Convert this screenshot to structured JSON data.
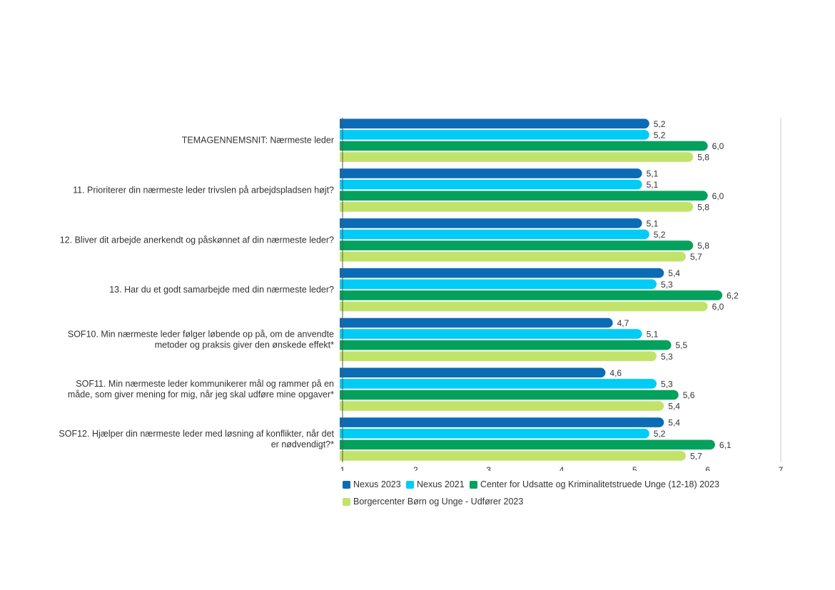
{
  "chart_data": {
    "type": "bar",
    "orientation": "horizontal",
    "title": "",
    "xlabel": "",
    "ylabel": "",
    "xlim": [
      1,
      7
    ],
    "x_ticks": [
      "1",
      "2",
      "3",
      "4",
      "5",
      "6",
      "7"
    ],
    "grid": false,
    "legend_position": "bottom",
    "categories": [
      [
        "TEMAGENNEMSNIT: Nærmeste leder"
      ],
      [
        "11. Prioriterer din nærmeste leder trivslen på arbejdspladsen højt?"
      ],
      [
        "12. Bliver dit arbejde anerkendt og påskønnet af din nærmeste leder?"
      ],
      [
        "13. Har du et godt samarbejde med din nærmeste leder?"
      ],
      [
        "SOF10. Min nærmeste leder følger løbende op på, om de anvendte",
        "metoder og praksis giver den ønskede effekt*"
      ],
      [
        "SOF11. Min nærmeste leder kommunikerer mål og rammer på en",
        "måde, som giver mening for mig, når jeg skal udføre mine opgaver*"
      ],
      [
        "SOF12. Hjælper din nærmeste leder med løsning af konflikter, når det",
        "er nødvendigt?*"
      ]
    ],
    "series": [
      {
        "name": "Nexus 2023",
        "color": "#0B6CB5",
        "values": [
          5.2,
          5.1,
          5.1,
          5.4,
          4.7,
          4.6,
          5.4
        ],
        "labels": [
          "5,2",
          "5,1",
          "5,1",
          "5,4",
          "4,7",
          "4,6",
          "5,4"
        ]
      },
      {
        "name": "Nexus 2021",
        "color": "#00CCF5",
        "values": [
          5.2,
          5.1,
          5.2,
          5.3,
          5.1,
          5.3,
          5.2
        ],
        "labels": [
          "5,2",
          "5,1",
          "5,2",
          "5,3",
          "5,1",
          "5,3",
          "5,2"
        ]
      },
      {
        "name": "Center for Udsatte og Kriminalitetstruede Unge (12-18) 2023",
        "color": "#04A15C",
        "values": [
          6.0,
          6.0,
          5.8,
          6.2,
          5.5,
          5.6,
          6.1
        ],
        "labels": [
          "6,0",
          "6,0",
          "5,8",
          "6,2",
          "5,5",
          "5,6",
          "6,1"
        ]
      },
      {
        "name": "Borgercenter Børn og Unge - Udfører 2023",
        "color": "#C2E36A",
        "values": [
          5.8,
          5.8,
          5.7,
          6.0,
          5.3,
          5.4,
          5.7
        ],
        "labels": [
          "5,8",
          "5,8",
          "5,7",
          "6,0",
          "5,3",
          "5,4",
          "5,7"
        ]
      }
    ]
  }
}
